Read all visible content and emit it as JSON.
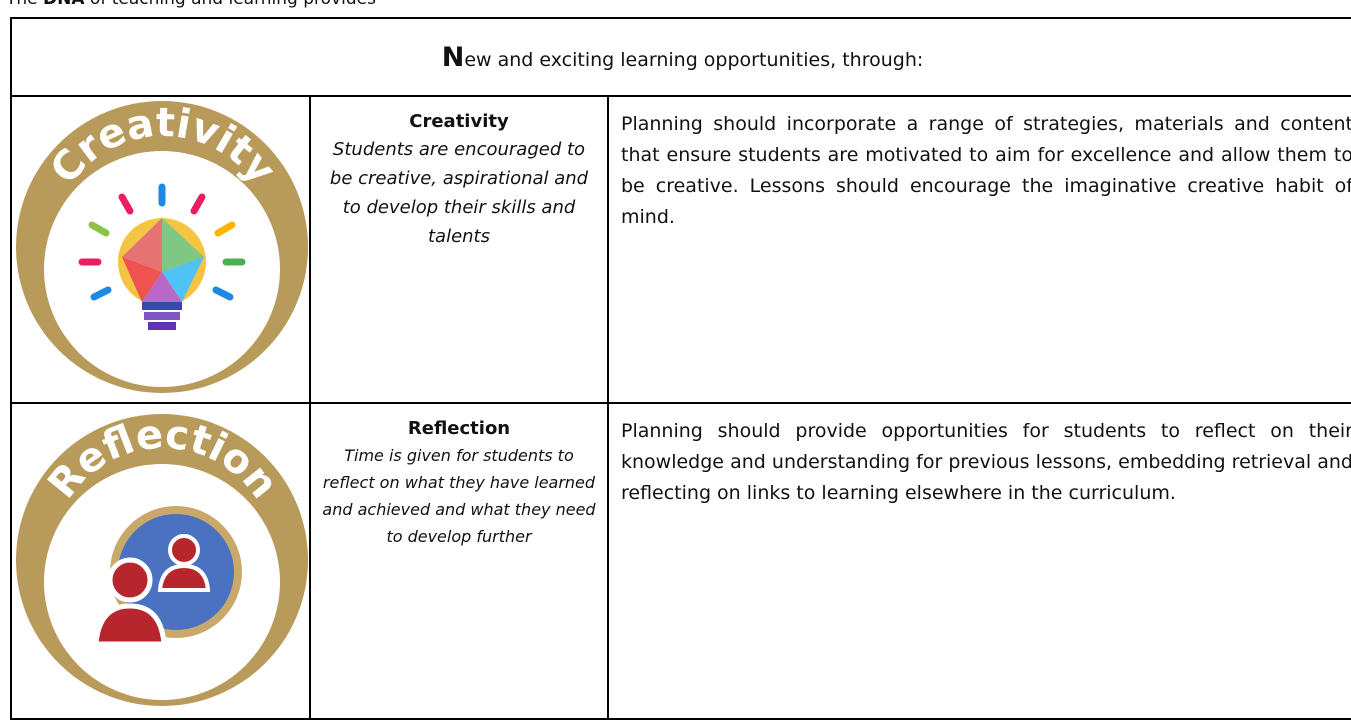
{
  "intro": {
    "before": "The ",
    "bold": "DNA",
    "after": " of teaching and learning provides"
  },
  "table": {
    "header": {
      "initial": "N",
      "rest": "ew and exciting learning opportunities, through:"
    },
    "rows": [
      {
        "badge": "Creativity",
        "title": "Creativity",
        "description": "Students are encouraged to be creative, aspirational and to develop their skills and talents",
        "guidance": "Planning should incorporate a range of strategies, materials and content that ensure students are motivated to aim for excellence and allow them to be creative. Lessons should encourage the imaginative creative habit of mind."
      },
      {
        "badge": "Reflection",
        "title": "Reflection",
        "description": "Time is given for students to reflect on what they have learned and achieved and what they need to develop further",
        "guidance": "Planning should provide opportunities for students to reflect on their knowledge and understanding for previous lessons, embedding retrieval and reflecting on links to learning elsewhere in the curriculum."
      }
    ]
  }
}
